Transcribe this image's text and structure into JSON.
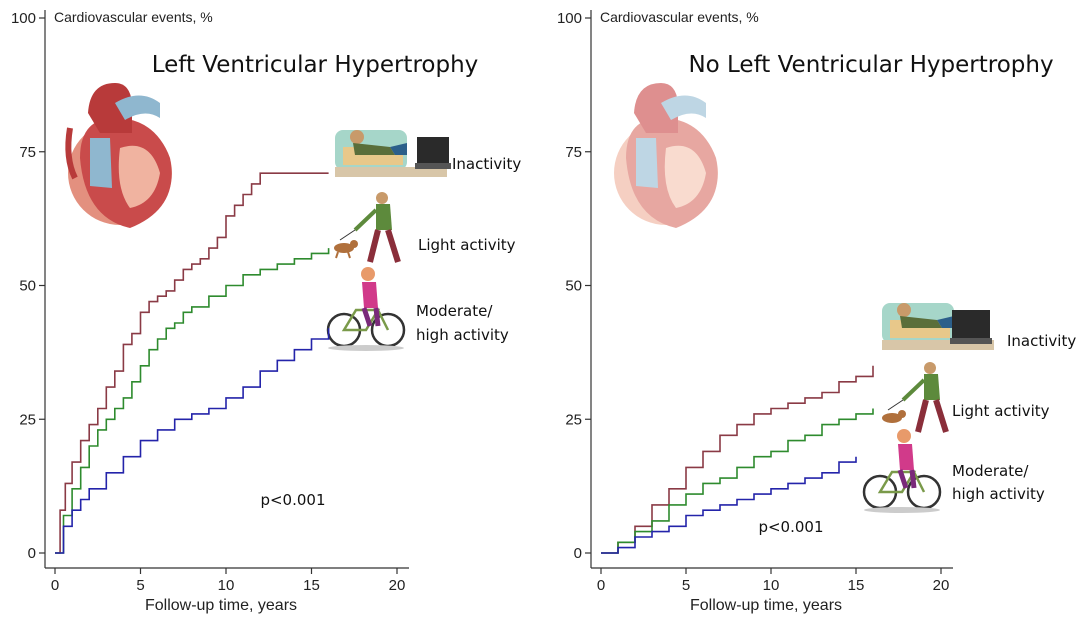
{
  "chart_data": [
    {
      "type": "line",
      "title": "Left Ventricular Hypertrophy",
      "ylabel": "Cardiovascular events, %",
      "xlabel": "Follow-up time, years",
      "xlim": [
        0,
        20
      ],
      "ylim": [
        0,
        100
      ],
      "xticks": [
        "0",
        "5",
        "10",
        "15",
        "20"
      ],
      "yticks": [
        "0",
        "25",
        "50",
        "75",
        "100"
      ],
      "annotation": "p<0.001",
      "grid": false,
      "step": true,
      "series": [
        {
          "name": "Inactivity",
          "color": "#8a3a45",
          "x": [
            0,
            0.3,
            0.6,
            1,
            1.5,
            2,
            2.5,
            3,
            3.5,
            4,
            4.5,
            5,
            5.5,
            6,
            6.5,
            7,
            7.5,
            8,
            8.5,
            9,
            9.5,
            10,
            10.5,
            11,
            11.5,
            12,
            13,
            14,
            15,
            16
          ],
          "y": [
            0,
            8,
            13,
            17,
            21,
            24,
            27,
            31,
            34,
            39,
            41,
            45,
            47,
            48,
            49,
            51,
            53,
            54,
            55,
            57,
            59,
            63,
            65,
            67,
            69,
            71,
            71,
            71,
            71,
            71
          ]
        },
        {
          "name": "Light activity",
          "color": "#2e8b2e",
          "x": [
            0,
            0.5,
            1,
            1.5,
            2,
            2.5,
            3,
            3.5,
            4,
            4.5,
            5,
            5.5,
            6,
            6.5,
            7,
            7.5,
            8,
            9,
            10,
            11,
            12,
            13,
            14,
            15,
            16
          ],
          "y": [
            0,
            7,
            12,
            16,
            20,
            23,
            25,
            27,
            29,
            32,
            35,
            38,
            40,
            42,
            43,
            45,
            46,
            48,
            50,
            52,
            53,
            54,
            55,
            56,
            57
          ]
        },
        {
          "name": "Moderate/ high activity",
          "color": "#2424aa",
          "x": [
            0,
            0.5,
            1,
            1.5,
            2,
            3,
            4,
            5,
            6,
            7,
            8,
            9,
            10,
            11,
            12,
            13,
            14,
            15,
            16
          ],
          "y": [
            0,
            5,
            8,
            10,
            12,
            15,
            18,
            21,
            23,
            25,
            26,
            27,
            29,
            31,
            34,
            36,
            38,
            40,
            42
          ]
        }
      ]
    },
    {
      "type": "line",
      "title": "No Left Ventricular Hypertrophy",
      "ylabel": "Cardiovascular events, %",
      "xlabel": "Follow-up time, years",
      "xlim": [
        0,
        20
      ],
      "ylim": [
        0,
        100
      ],
      "xticks": [
        "0",
        "5",
        "10",
        "15",
        "20"
      ],
      "yticks": [
        "0",
        "25",
        "50",
        "75",
        "100"
      ],
      "annotation": "p<0.001",
      "grid": false,
      "step": true,
      "series": [
        {
          "name": "Inactivity",
          "color": "#8a3a45",
          "x": [
            0,
            1,
            2,
            3,
            4,
            5,
            6,
            7,
            8,
            9,
            10,
            11,
            12,
            13,
            14,
            15,
            16
          ],
          "y": [
            0,
            2,
            5,
            9,
            12,
            16,
            19,
            22,
            24,
            26,
            27,
            28,
            29,
            30,
            32,
            33,
            35
          ]
        },
        {
          "name": "Light activity",
          "color": "#2e8b2e",
          "x": [
            0,
            1,
            2,
            3,
            4,
            5,
            6,
            7,
            8,
            9,
            10,
            11,
            12,
            13,
            14,
            15,
            16
          ],
          "y": [
            0,
            2,
            4,
            6,
            9,
            11,
            13,
            14,
            16,
            18,
            19,
            21,
            22,
            24,
            25,
            26,
            27
          ]
        },
        {
          "name": "Moderate/ high activity",
          "color": "#2424aa",
          "x": [
            0,
            1,
            2,
            3,
            4,
            5,
            6,
            7,
            8,
            9,
            10,
            11,
            12,
            13,
            14,
            15
          ],
          "y": [
            0,
            1,
            3,
            4,
            5,
            7,
            8,
            9,
            10,
            11,
            12,
            13,
            14,
            15,
            17,
            18
          ]
        }
      ]
    }
  ],
  "labels": {
    "inactivity": "Inactivity",
    "light": "Light activity",
    "moderate_1": "Moderate/",
    "moderate_2": "high activity"
  },
  "icons": {
    "heart": "heart-illustration-icon",
    "sofa": "person-on-sofa-watching-tv-icon",
    "walker": "person-walking-dog-icon",
    "cyclist": "person-cycling-icon"
  },
  "colors": {
    "inactivity": "#8a3a45",
    "light": "#2e8b2e",
    "moderate": "#2424aa"
  }
}
